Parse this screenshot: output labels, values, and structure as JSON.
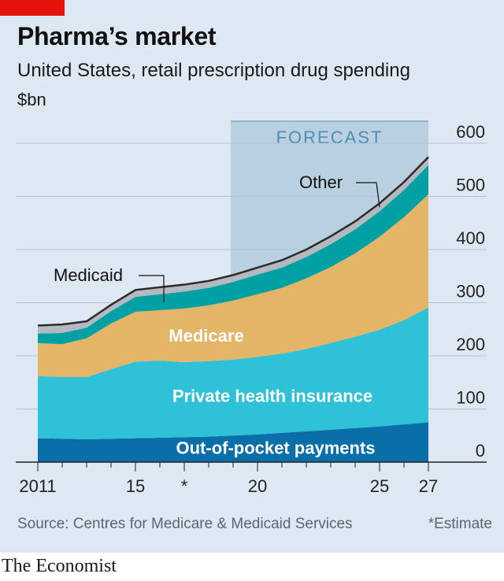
{
  "title": "Pharma’s market",
  "subtitle": "United States, retail prescription drug spending",
  "unit": "$bn",
  "forecast_label": "FORECAST",
  "source": "Source: Centres for Medicare & Medicaid Services",
  "footnote": "*Estimate",
  "brand": "The Economist",
  "colors": {
    "out_of_pocket": "#0a6fa8",
    "private": "#2ec1d8",
    "medicare": "#e4b566",
    "medicaid": "#00a0a4",
    "other": "#b3b9bf",
    "total_line": "#2b2b2b",
    "forecast_shade": "#b9d0e0",
    "background": "#dde8f2",
    "brand_red": "#e3120b"
  },
  "chart_data": {
    "type": "area",
    "stacked": true,
    "title": "Pharma’s market",
    "subtitle": "United States, retail prescription drug spending",
    "unit": "$bn",
    "x": [
      2011,
      2012,
      2013,
      2014,
      2015,
      2016,
      2017,
      2018,
      2019,
      2020,
      2021,
      2022,
      2023,
      2024,
      2025,
      2026,
      2027
    ],
    "x_tick_labels": [
      "2011",
      "15",
      "*",
      "20",
      "25",
      "27"
    ],
    "x_tick_positions": [
      2011,
      2015,
      2017,
      2020,
      2025,
      2027
    ],
    "y_tick_labels": [
      "0",
      "100",
      "200",
      "300",
      "400",
      "500",
      "600"
    ],
    "ylim": [
      0,
      600
    ],
    "y_axis_side": "right",
    "grid": true,
    "forecast_range": [
      2019,
      2027
    ],
    "series": [
      {
        "name": "Out-of-pocket payments",
        "values": [
          45,
          44,
          43,
          44,
          45,
          46,
          47,
          48,
          50,
          52,
          55,
          58,
          61,
          64,
          67,
          71,
          75
        ]
      },
      {
        "name": "Private health insurance",
        "values": [
          117,
          116,
          117,
          131,
          144,
          145,
          141,
          142,
          143,
          146,
          149,
          155,
          163,
          172,
          182,
          196,
          216
        ]
      },
      {
        "name": "Medicare",
        "values": [
          62,
          62,
          73,
          86,
          94,
          95,
          101,
          105,
          111,
          118,
          124,
          133,
          143,
          157,
          175,
          194,
          213
        ]
      },
      {
        "name": "Medicaid",
        "values": [
          18,
          21,
          20,
          23,
          28,
          30,
          32,
          33,
          35,
          37,
          38,
          40,
          43,
          45,
          48,
          51,
          55
        ]
      },
      {
        "name": "Other",
        "values": [
          15,
          16,
          12,
          12,
          13,
          13,
          13,
          13,
          13,
          13,
          14,
          14,
          15,
          15,
          15,
          15,
          15
        ]
      }
    ],
    "total_line": true,
    "annotations": [
      {
        "text": "Other",
        "series": "Other",
        "year": 2025,
        "leader": true
      },
      {
        "text": "Medicaid",
        "series": "Medicaid",
        "year": 2016,
        "leader": true
      },
      {
        "text": "Medicare",
        "series": "Medicare",
        "inside_area": true
      },
      {
        "text": "Private health insurance",
        "series": "Private health insurance",
        "inside_area": true
      },
      {
        "text": "Out-of-pocket payments",
        "series": "Out-of-pocket payments",
        "inside_area": true
      }
    ],
    "footnote": "*Estimate",
    "source": "Source: Centres for Medicare & Medicaid Services"
  }
}
